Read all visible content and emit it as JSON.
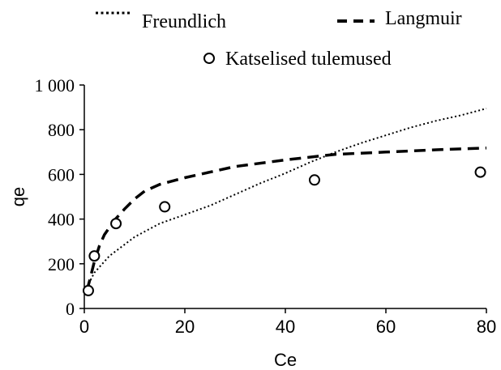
{
  "chart_data": {
    "type": "scatter",
    "title": "",
    "xlabel": "Ce",
    "ylabel": "qe",
    "xlim": [
      0,
      80
    ],
    "ylim": [
      0,
      1000
    ],
    "x_ticks": [
      "0",
      "20",
      "40",
      "60",
      "80"
    ],
    "y_ticks": [
      "0",
      "200",
      "400",
      "600",
      "800",
      "1 000"
    ],
    "grid": false,
    "legend_placement": "top",
    "series": [
      {
        "name": "Freundlich",
        "kind": "line",
        "style": "dotted",
        "color": "#000000",
        "x": [
          0.5,
          2,
          5,
          10,
          15,
          20,
          25,
          30,
          35,
          40,
          45,
          50,
          55,
          60,
          65,
          70,
          75,
          80
        ],
        "y": [
          95,
          160,
          235,
          320,
          380,
          420,
          460,
          510,
          560,
          605,
          655,
          700,
          740,
          775,
          810,
          840,
          865,
          895
        ]
      },
      {
        "name": "Langmuir",
        "kind": "line",
        "style": "dashed",
        "color": "#000000",
        "x": [
          0.5,
          1,
          2,
          3,
          4,
          6,
          8,
          10,
          12,
          15,
          20,
          25,
          30,
          40,
          50,
          60,
          70,
          80
        ],
        "y": [
          80,
          120,
          210,
          280,
          330,
          395,
          445,
          490,
          525,
          555,
          585,
          610,
          635,
          665,
          690,
          700,
          710,
          718
        ]
      },
      {
        "name": "Katselised tulemused",
        "kind": "points",
        "marker": "circle-open",
        "color": "#000000",
        "x": [
          0.8,
          2.0,
          6.3,
          16.0,
          45.8,
          78.8
        ],
        "y": [
          80,
          235,
          380,
          455,
          575,
          610
        ]
      }
    ]
  }
}
